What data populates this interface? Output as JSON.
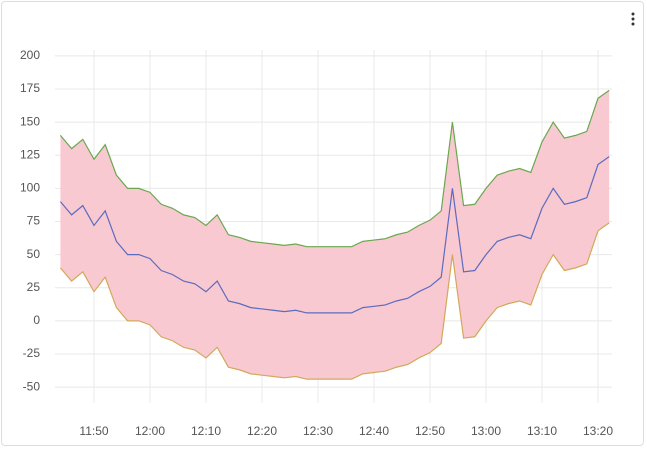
{
  "chart_data": {
    "type": "line",
    "categories": [
      null,
      null,
      null,
      "11:50",
      null,
      null,
      null,
      null,
      "12:00",
      null,
      null,
      null,
      null,
      "12:10",
      null,
      null,
      null,
      null,
      "12:20",
      null,
      null,
      null,
      null,
      "12:30",
      null,
      null,
      null,
      null,
      "12:40",
      null,
      null,
      null,
      null,
      "12:50",
      null,
      null,
      null,
      null,
      "13:00",
      null,
      null,
      null,
      null,
      "13:10",
      null,
      null,
      null,
      null,
      "13:20",
      null
    ],
    "series": [
      {
        "color": "#6aa84f",
        "values": [
          140,
          130,
          137,
          122,
          133,
          110,
          100,
          100,
          97,
          88,
          85,
          80,
          78,
          72,
          80,
          65,
          63,
          60,
          59,
          58,
          57,
          58,
          56,
          56,
          56,
          56,
          56,
          60,
          61,
          62,
          65,
          67,
          72,
          76,
          83,
          150,
          87,
          88,
          100,
          110,
          113,
          115,
          112,
          135,
          150,
          138,
          140,
          143,
          168,
          174
        ]
      },
      {
        "color": "#5b6bbf",
        "values": [
          90,
          80,
          87,
          72,
          83,
          60,
          50,
          50,
          47,
          38,
          35,
          30,
          28,
          22,
          30,
          15,
          13,
          10,
          9,
          8,
          7,
          8,
          6,
          6,
          6,
          6,
          6,
          10,
          11,
          12,
          15,
          17,
          22,
          26,
          33,
          100,
          37,
          38,
          50,
          60,
          63,
          65,
          62,
          85,
          100,
          88,
          90,
          93,
          118,
          124
        ]
      },
      {
        "color": "#d4a85a",
        "values": [
          40,
          30,
          37,
          22,
          33,
          10,
          0,
          0,
          -3,
          -12,
          -15,
          -20,
          -22,
          -28,
          -20,
          -35,
          -37,
          -40,
          -41,
          -42,
          -43,
          -42,
          -44,
          -44,
          -44,
          -44,
          -44,
          -40,
          -39,
          -38,
          -35,
          -33,
          -28,
          -24,
          -17,
          50,
          -13,
          -12,
          0,
          10,
          13,
          15,
          12,
          35,
          50,
          38,
          40,
          43,
          68,
          74
        ]
      }
    ],
    "band_fill": "#f9c9d1",
    "ylim": [
      -62,
      212
    ],
    "yticks": [
      -50,
      -25,
      0,
      25,
      50,
      75,
      100,
      125,
      150,
      175,
      200
    ],
    "grid": true
  }
}
